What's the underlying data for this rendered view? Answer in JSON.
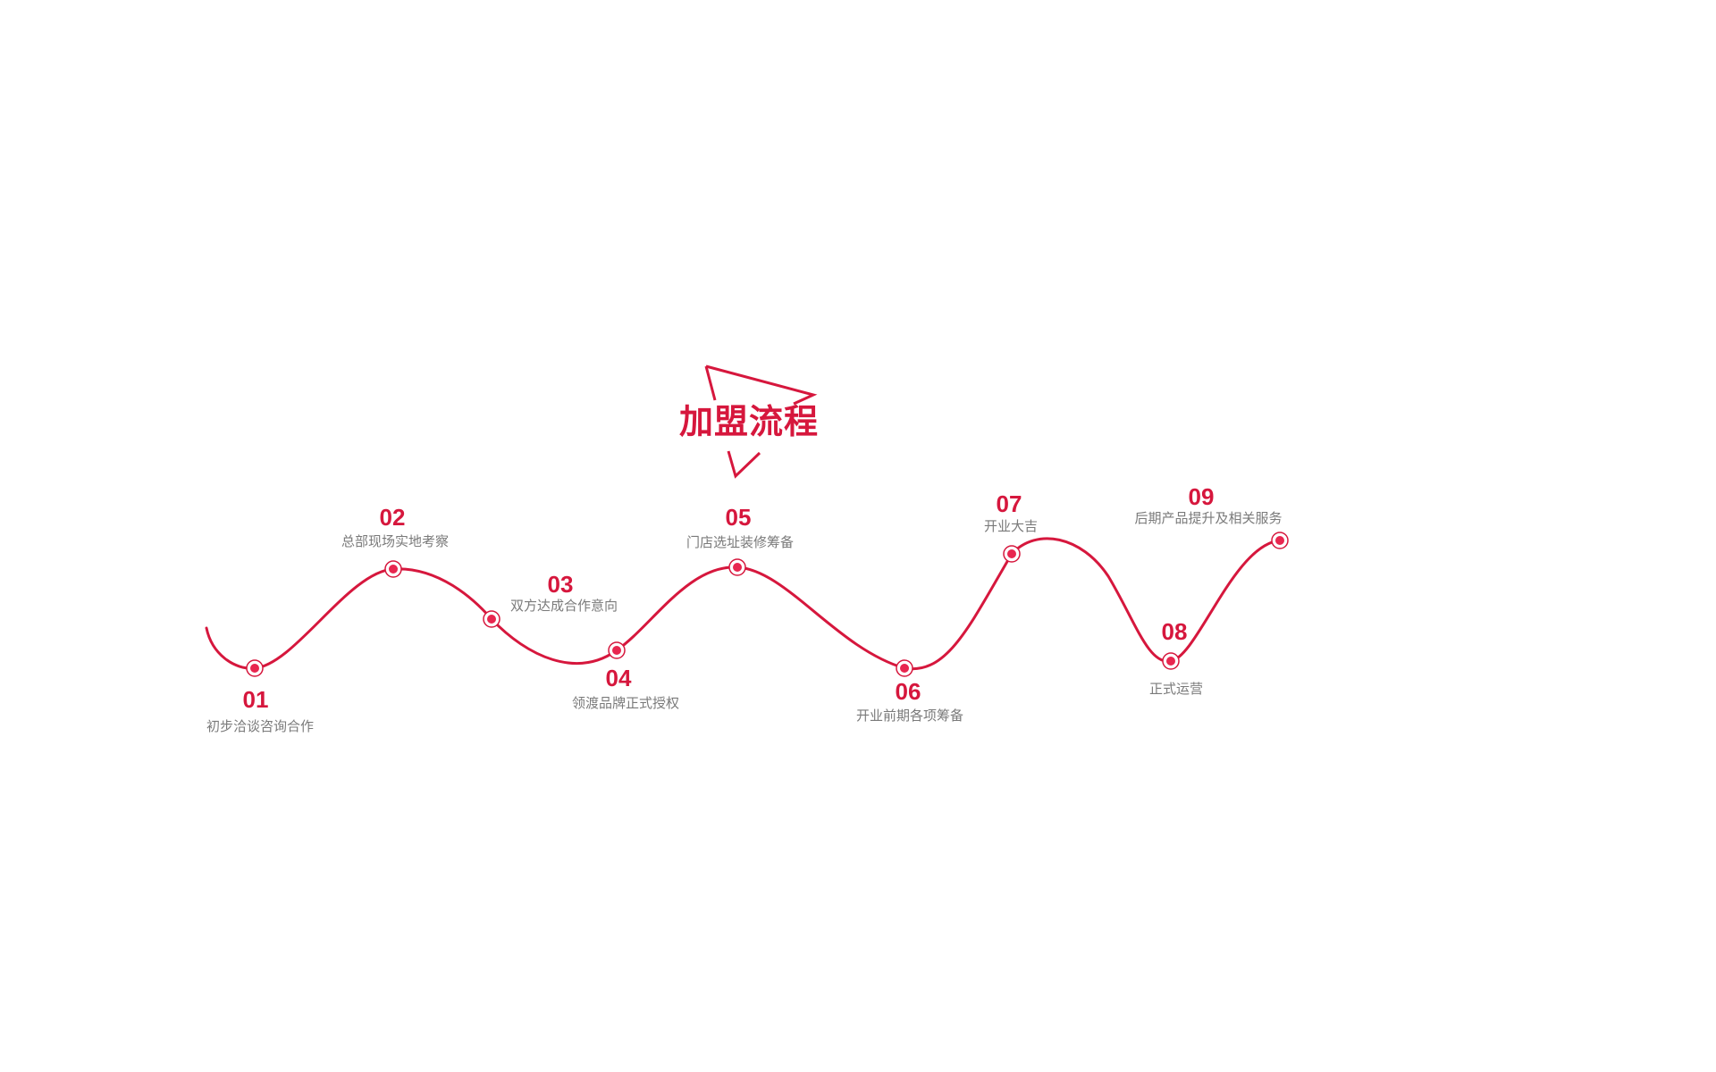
{
  "title": "加盟流程",
  "colors": {
    "accent": "#d6173d",
    "label": "#7a7a7a",
    "background": "#ffffff"
  },
  "steps": [
    {
      "number": "01",
      "label": "初步洽谈咨询合作"
    },
    {
      "number": "02",
      "label": "总部现场实地考察"
    },
    {
      "number": "03",
      "label": "双方达成合作意向"
    },
    {
      "number": "04",
      "label": "领渡品牌正式授权"
    },
    {
      "number": "05",
      "label": "门店选址装修筹备"
    },
    {
      "number": "06",
      "label": "开业前期各项筹备"
    },
    {
      "number": "07",
      "label": "开业大吉"
    },
    {
      "number": "08",
      "label": "正式运营"
    },
    {
      "number": "09",
      "label": "后期产品提升及相关服务"
    }
  ]
}
